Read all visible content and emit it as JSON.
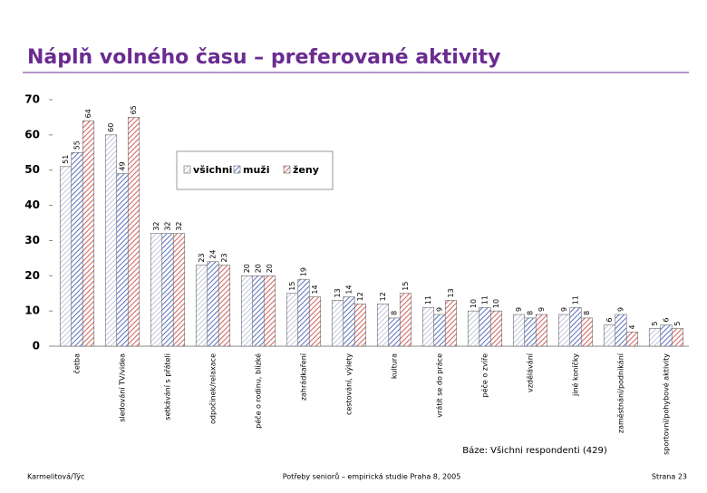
{
  "chart_data": {
    "type": "bar",
    "title": "Náplň volného času – preferované aktivity",
    "categories": [
      "četba",
      "sledování TV/videa",
      "setkávání s přáteli",
      "odpočinek/relaxace",
      "péče o rodinu, blízké",
      "zahrádkaření",
      "cestování, výlety",
      "kultura",
      "vrátit se do práce",
      "péče o zvíře",
      "vzdělávání",
      "jiné koníčky",
      "zaměstnání/podnikání",
      "sportovní/pohybové aktivity"
    ],
    "series": [
      {
        "name": "všichni",
        "color": "#9aa4c8",
        "values": [
          51,
          60,
          32,
          23,
          20,
          15,
          13,
          12,
          11,
          10,
          9,
          9,
          6,
          5
        ]
      },
      {
        "name": "muži",
        "color": "#5a6fc0",
        "values": [
          55,
          49,
          32,
          24,
          20,
          19,
          14,
          8,
          9,
          11,
          8,
          11,
          9,
          6
        ]
      },
      {
        "name": "ženy",
        "color": "#d0605a",
        "values": [
          64,
          65,
          32,
          23,
          20,
          14,
          12,
          15,
          13,
          10,
          9,
          8,
          4,
          5
        ]
      }
    ],
    "ylim": [
      0,
      70
    ],
    "yticks": [
      0,
      10,
      20,
      30,
      40,
      50,
      60,
      70
    ],
    "grid": false,
    "note": "Báze: Všichni respondenti (429)",
    "footer": {
      "left": "Karmelitová/Týc",
      "center": "Potřeby seniorů – empirická studie Praha 8, 2005",
      "right": "Strana 23"
    }
  }
}
